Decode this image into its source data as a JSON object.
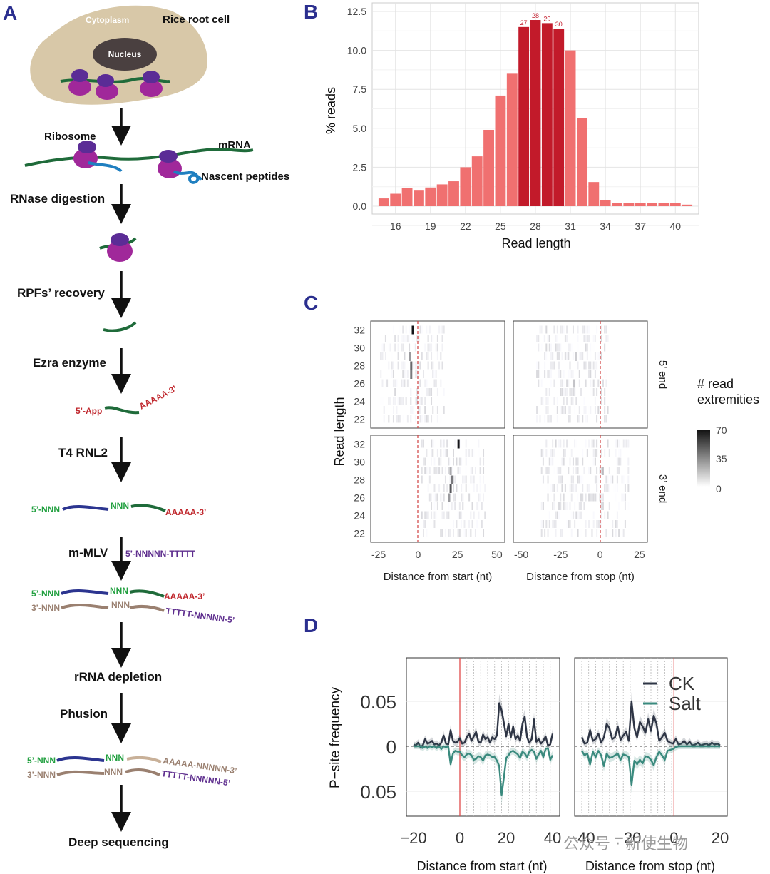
{
  "panel_labels": {
    "a": "A",
    "b": "B",
    "c": "C",
    "d": "D"
  },
  "workflow": {
    "cell_label": "Rice root cell",
    "cytoplasm": "Cytoplasm",
    "nucleus": "Nucleus",
    "ribosome": "Ribosome",
    "mrna": "mRNA",
    "nascent": "Nascent peptides",
    "steps": {
      "rnase": "RNase digestion",
      "rpf": "RPFs’ recovery",
      "ezra": "Ezra enzyme",
      "t4": "T4 RNL2",
      "mmlv": "m-MLV",
      "rrna": "rRNA depletion",
      "phusion": "Phusion",
      "deep": "Deep sequencing"
    },
    "seq": {
      "app5": "5’-App",
      "polya3": "AAAAA-3’",
      "nnn5": "5’-NNN",
      "nnn": "NNN",
      "nnn3": "3’-NNN",
      "primer": "5’-NNNNN-TTTTT",
      "ttttt5": "TTTTT-NNNNN-5’",
      "aaaaa_nnn3": "AAAAA-NNNNN-3’"
    },
    "colors": {
      "cell": "#d8c8a8",
      "nucleus": "#4a4040",
      "ribosome_large": "#a0289a",
      "ribosome_small": "#5b2c96",
      "mrna": "#1f6b3a",
      "peptide": "#1f7fc0",
      "red_text": "#c0282e",
      "green_text": "#22a040",
      "purple_text": "#5e2e8e",
      "blue_strand": "#2c3590",
      "brown_strand": "#9a8070",
      "arrow": "#111111"
    }
  },
  "chart_data": [
    {
      "panel": "B",
      "type": "bar",
      "xlabel": "Read length",
      "ylabel": "% reads",
      "ylim": [
        0,
        12.5
      ],
      "yticks": [
        "0.0",
        "2.5",
        "5.0",
        "7.5",
        "10.0",
        "12.5"
      ],
      "xticks": [
        "16",
        "19",
        "22",
        "25",
        "28",
        "31",
        "34",
        "37",
        "40"
      ],
      "grid": true,
      "x": [
        15,
        16,
        17,
        18,
        19,
        20,
        21,
        22,
        23,
        24,
        25,
        26,
        27,
        28,
        29,
        30,
        31,
        32,
        33,
        34,
        35,
        36,
        37,
        38,
        39,
        40,
        41
      ],
      "values": [
        0.5,
        0.8,
        1.15,
        1.0,
        1.2,
        1.4,
        1.6,
        2.5,
        3.2,
        4.9,
        7.1,
        8.5,
        11.5,
        11.95,
        11.75,
        11.4,
        10.0,
        5.65,
        1.55,
        0.4,
        0.2,
        0.2,
        0.2,
        0.2,
        0.2,
        0.2,
        0.1
      ],
      "highlight_x": [
        27,
        28,
        29,
        30
      ],
      "highlight_labels": [
        "27",
        "28",
        "29",
        "30"
      ],
      "colors": {
        "normal": "#f07070",
        "highlight": "#c21a2a"
      }
    },
    {
      "panel": "C",
      "type": "heatmap",
      "ylabel": "Read length",
      "facets_x": [
        "Distance from start (nt)",
        "Distance from stop (nt)"
      ],
      "facets_y": [
        "5’ end",
        "3’ end"
      ],
      "yticks": [
        "22",
        "24",
        "26",
        "28",
        "30",
        "32"
      ],
      "xticks_start": [
        "-25",
        "0",
        "25",
        "50"
      ],
      "xticks_stop": [
        "-50",
        "-25",
        "0",
        "25"
      ],
      "legend_title": [
        "# read",
        "extremities"
      ],
      "legend_ticks": [
        "70",
        "35",
        "0"
      ],
      "color_range": [
        0,
        70
      ]
    },
    {
      "panel": "D",
      "type": "line",
      "ylabel": "P−site frequency",
      "yticks": [
        "0.05",
        "0",
        "0.05"
      ],
      "xlabel_left": "Distance from start (nt)",
      "xlabel_right": "Distance from stop (nt)",
      "xticks_left": [
        "−20",
        "0",
        "20",
        "40"
      ],
      "xticks_right": [
        "−40",
        "−20",
        "0",
        "20"
      ],
      "series": [
        {
          "name": "CK",
          "color": "#2e3545",
          "start": [
            0.002,
            0.001,
            0.004,
            -0.001,
            0.001,
            0.008,
            0.003,
            0.004,
            0.006,
            0.002,
            0.003,
            0.001,
            0.004,
            0.012,
            0.003,
            0.002,
            0.018,
            0.006,
            0.004,
            0.005,
            0.009,
            0.003,
            0.004,
            0.01,
            0.014,
            0.006,
            0.011,
            0.016,
            0.005,
            0.004,
            0.013,
            0.008,
            0.01,
            0.004,
            0.01,
            0.008,
            0.012,
            0.048,
            0.04,
            0.026,
            0.011,
            0.025,
            0.01,
            0.022,
            0.008,
            0.012,
            0.006,
            0.025,
            0.033,
            0.01,
            0.004,
            0.008,
            0.03,
            0.005,
            0.008,
            0.003,
            0.006,
            0.011,
            0.001,
            0.002,
            0.014
          ],
          "stop": [
            0.01,
            0.003,
            0.004,
            0.018,
            0.006,
            0.008,
            0.014,
            0.004,
            0.01,
            0.025,
            0.02,
            0.008,
            0.01,
            0.022,
            0.007,
            0.012,
            0.016,
            0.006,
            0.05,
            0.02,
            0.01,
            0.027,
            0.022,
            0.015,
            0.03,
            0.017,
            0.034,
            0.025,
            0.006,
            0.01,
            0.015,
            0.006,
            0.004,
            0.003,
            0.008,
            0.002,
            0.003,
            0.006,
            0.002,
            0.005,
            0.001,
            0.002,
            0.004,
            0.001,
            0.002,
            0.003,
            0.001,
            0.004,
            0.002,
            0.003,
            0.001
          ]
        },
        {
          "name": "Salt",
          "color": "#3a8a7e",
          "start": [
            0.0,
            0.0,
            0.0,
            0.0,
            -0.002,
            0.0,
            -0.002,
            0.0,
            -0.001,
            0.0,
            -0.002,
            0.0,
            -0.003,
            0.0,
            -0.001,
            0.0,
            -0.02,
            -0.008,
            -0.005,
            -0.006,
            -0.006,
            -0.01,
            -0.012,
            -0.009,
            -0.008,
            -0.01,
            -0.015,
            -0.014,
            -0.011,
            -0.012,
            -0.016,
            -0.01,
            -0.009,
            -0.01,
            -0.012,
            -0.012,
            -0.016,
            -0.022,
            -0.054,
            -0.035,
            -0.013,
            -0.01,
            -0.006,
            -0.005,
            -0.007,
            -0.009,
            -0.013,
            -0.006,
            -0.008,
            -0.012,
            -0.006,
            -0.004,
            -0.006,
            -0.014,
            -0.009,
            -0.005,
            -0.012,
            -0.003,
            -0.002,
            -0.015,
            -0.01
          ],
          "stop": [
            -0.005,
            -0.01,
            -0.008,
            -0.02,
            -0.006,
            -0.012,
            -0.005,
            -0.01,
            -0.022,
            -0.008,
            -0.013,
            -0.012,
            -0.01,
            -0.008,
            -0.015,
            -0.009,
            -0.01,
            -0.012,
            -0.043,
            -0.016,
            -0.02,
            -0.015,
            -0.019,
            -0.011,
            -0.012,
            -0.015,
            -0.021,
            -0.012,
            -0.006,
            -0.01,
            -0.015,
            -0.005,
            -0.004,
            -0.003,
            -0.001,
            0.0,
            0.0,
            0.0,
            0.0,
            0.0,
            0.0,
            0.0,
            0.0,
            0.0,
            0.0,
            0.0,
            0.0,
            0.0,
            0.0,
            0.0,
            0.0
          ]
        }
      ]
    }
  ],
  "watermark": "公众号 · 新使生物"
}
